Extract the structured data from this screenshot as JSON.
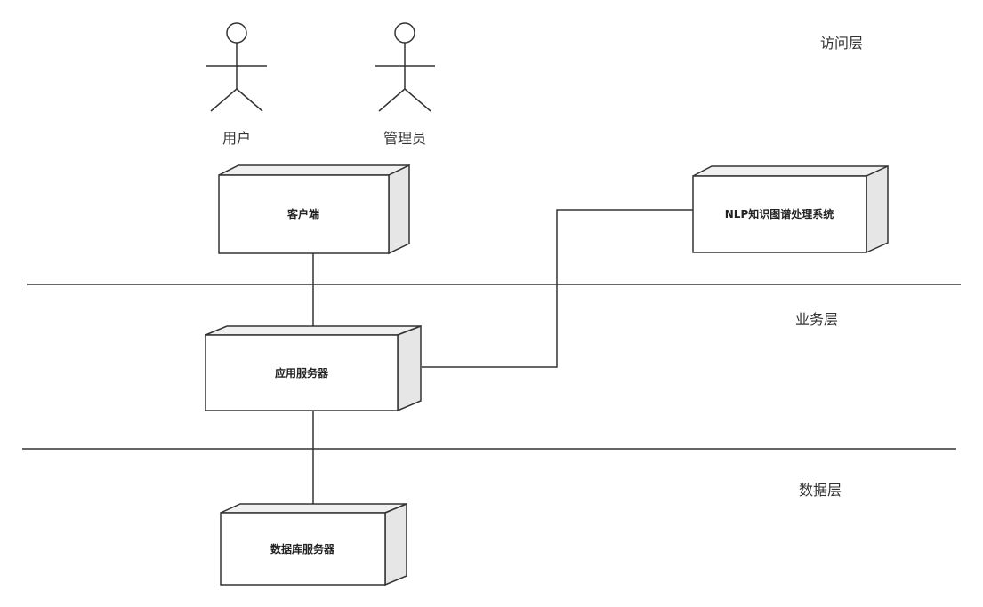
{
  "layers": {
    "access": "访问层",
    "business": "业务层",
    "data": "数据层"
  },
  "actors": {
    "user": "用户",
    "admin": "管理员"
  },
  "nodes": {
    "client": "客户端",
    "nlp": "NLP知识图谱处理系统",
    "app_server": "应用服务器",
    "db_server": "数据库服务器"
  }
}
